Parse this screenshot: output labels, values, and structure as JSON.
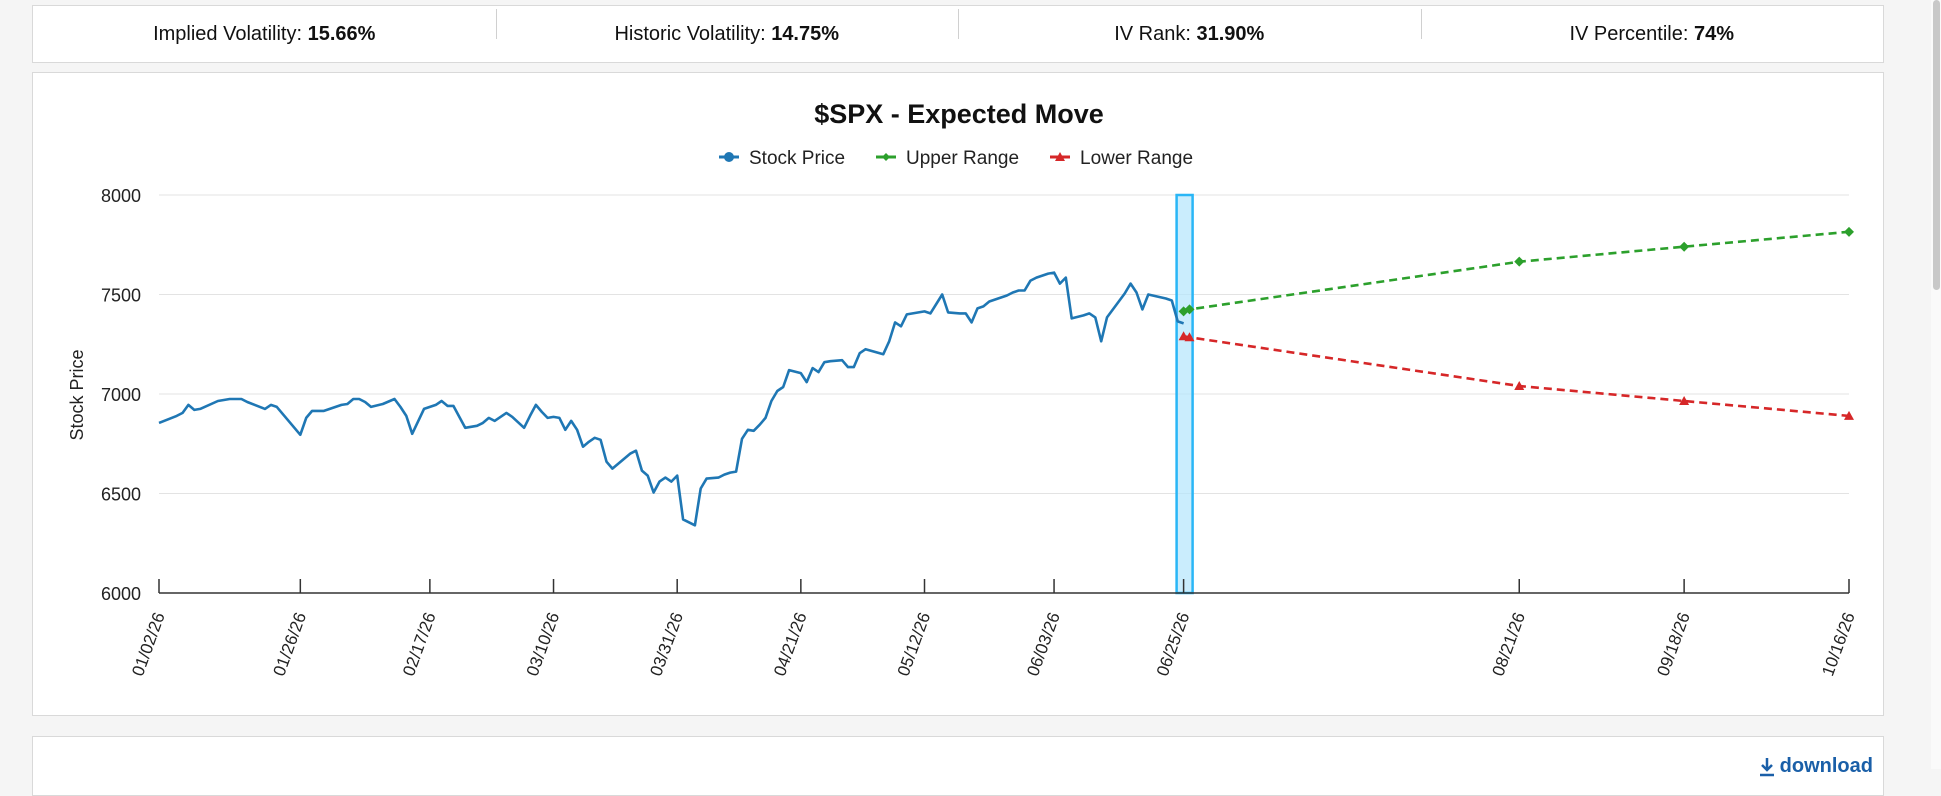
{
  "stats": [
    {
      "label": "Implied Volatility:",
      "value": "15.66%"
    },
    {
      "label": "Historic Volatility:",
      "value": "14.75%"
    },
    {
      "label": "IV Rank:",
      "value": "31.90%"
    },
    {
      "label": "IV Percentile:",
      "value": "74%"
    }
  ],
  "download": {
    "label": "download",
    "icon": "download-icon"
  },
  "chart_data": {
    "type": "line",
    "title": "$SPX - Expected Move",
    "ylabel": "Stock Price",
    "xlabel": "",
    "ylim": [
      6000,
      8000
    ],
    "yticks": [
      6000,
      6500,
      7000,
      7500,
      8000
    ],
    "xticks": [
      "01/02/26",
      "01/26/26",
      "02/17/26",
      "03/10/26",
      "03/31/26",
      "04/21/26",
      "05/12/26",
      "06/03/26",
      "06/25/26",
      "08/21/26",
      "09/18/26",
      "10/16/26"
    ],
    "legend_position": "top-center",
    "grid": true,
    "colors": {
      "stock": "#1f77b4",
      "upper": "#2ca02c",
      "lower": "#d62728",
      "highlight": "#29b6f6"
    },
    "highlight_date": "06/25/26",
    "series": [
      {
        "name": "Stock Price",
        "points": [
          [
            "01/02/26",
            6855
          ],
          [
            "01/05/26",
            6890
          ],
          [
            "01/06/26",
            6905
          ],
          [
            "01/07/26",
            6945
          ],
          [
            "01/08/26",
            6920
          ],
          [
            "01/09/26",
            6925
          ],
          [
            "01/12/26",
            6965
          ],
          [
            "01/14/26",
            6975
          ],
          [
            "01/16/26",
            6975
          ],
          [
            "01/17/26",
            6960
          ],
          [
            "01/20/26",
            6925
          ],
          [
            "01/21/26",
            6945
          ],
          [
            "01/22/26",
            6935
          ],
          [
            "01/26/26",
            6795
          ],
          [
            "01/27/26",
            6880
          ],
          [
            "01/28/26",
            6915
          ],
          [
            "01/30/26",
            6915
          ],
          [
            "02/02/26",
            6945
          ],
          [
            "02/03/26",
            6950
          ],
          [
            "02/04/26",
            6975
          ],
          [
            "02/05/26",
            6975
          ],
          [
            "02/06/26",
            6960
          ],
          [
            "02/07/26",
            6935
          ],
          [
            "02/09/26",
            6950
          ],
          [
            "02/11/26",
            6975
          ],
          [
            "02/12/26",
            6935
          ],
          [
            "02/13/26",
            6890
          ],
          [
            "02/14/26",
            6800
          ],
          [
            "02/16/26",
            6925
          ],
          [
            "02/18/26",
            6945
          ],
          [
            "02/19/26",
            6965
          ],
          [
            "02/20/26",
            6940
          ],
          [
            "02/21/26",
            6940
          ],
          [
            "02/23/26",
            6830
          ],
          [
            "02/24/26",
            6835
          ],
          [
            "02/25/26",
            6840
          ],
          [
            "02/26/26",
            6855
          ],
          [
            "02/27/26",
            6880
          ],
          [
            "02/28/26",
            6865
          ],
          [
            "03/02/26",
            6905
          ],
          [
            "03/03/26",
            6885
          ],
          [
            "03/05/26",
            6830
          ],
          [
            "03/06/26",
            6890
          ],
          [
            "03/07/26",
            6945
          ],
          [
            "03/08/26",
            6910
          ],
          [
            "03/09/26",
            6880
          ],
          [
            "03/10/26",
            6885
          ],
          [
            "03/11/26",
            6880
          ],
          [
            "03/12/26",
            6820
          ],
          [
            "03/13/26",
            6865
          ],
          [
            "03/14/26",
            6820
          ],
          [
            "03/15/26",
            6735
          ],
          [
            "03/16/26",
            6760
          ],
          [
            "03/17/26",
            6780
          ],
          [
            "03/18/26",
            6770
          ],
          [
            "03/19/26",
            6660
          ],
          [
            "03/20/26",
            6625
          ],
          [
            "03/23/26",
            6700
          ],
          [
            "03/24/26",
            6715
          ],
          [
            "03/25/26",
            6615
          ],
          [
            "03/26/26",
            6590
          ],
          [
            "03/27/26",
            6505
          ],
          [
            "03/28/26",
            6560
          ],
          [
            "03/29/26",
            6580
          ],
          [
            "03/30/26",
            6560
          ],
          [
            "03/31/26",
            6590
          ],
          [
            "04/01/26",
            6370
          ],
          [
            "04/03/26",
            6340
          ],
          [
            "04/04/26",
            6525
          ],
          [
            "04/05/26",
            6575
          ],
          [
            "04/07/26",
            6580
          ],
          [
            "04/08/26",
            6595
          ],
          [
            "04/09/26",
            6605
          ],
          [
            "04/10/26",
            6610
          ],
          [
            "04/11/26",
            6775
          ],
          [
            "04/12/26",
            6820
          ],
          [
            "04/13/26",
            6815
          ],
          [
            "04/14/26",
            6845
          ],
          [
            "04/15/26",
            6880
          ],
          [
            "04/16/26",
            6965
          ],
          [
            "04/17/26",
            7015
          ],
          [
            "04/18/26",
            7035
          ],
          [
            "04/19/26",
            7120
          ],
          [
            "04/21/26",
            7105
          ],
          [
            "04/22/26",
            7060
          ],
          [
            "04/23/26",
            7130
          ],
          [
            "04/24/26",
            7110
          ],
          [
            "04/25/26",
            7160
          ],
          [
            "04/26/26",
            7165
          ],
          [
            "04/28/26",
            7170
          ],
          [
            "04/29/26",
            7135
          ],
          [
            "04/30/26",
            7135
          ],
          [
            "05/01/26",
            7205
          ],
          [
            "05/02/26",
            7225
          ],
          [
            "05/05/26",
            7200
          ],
          [
            "05/06/26",
            7265
          ],
          [
            "05/07/26",
            7360
          ],
          [
            "05/08/26",
            7340
          ],
          [
            "05/09/26",
            7400
          ],
          [
            "05/11/26",
            7410
          ],
          [
            "05/12/26",
            7415
          ],
          [
            "05/13/26",
            7405
          ],
          [
            "05/15/26",
            7500
          ],
          [
            "05/16/26",
            7410
          ],
          [
            "05/18/26",
            7405
          ],
          [
            "05/19/26",
            7405
          ],
          [
            "05/20/26",
            7360
          ],
          [
            "05/21/26",
            7430
          ],
          [
            "05/22/26",
            7440
          ],
          [
            "05/23/26",
            7465
          ],
          [
            "05/26/26",
            7495
          ],
          [
            "05/27/26",
            7510
          ],
          [
            "05/28/26",
            7520
          ],
          [
            "05/29/26",
            7520
          ],
          [
            "05/30/26",
            7570
          ],
          [
            "05/31/26",
            7585
          ],
          [
            "06/02/26",
            7605
          ],
          [
            "06/03/26",
            7610
          ],
          [
            "06/04/26",
            7555
          ],
          [
            "06/05/26",
            7585
          ],
          [
            "06/06/26",
            7380
          ],
          [
            "06/08/26",
            7395
          ],
          [
            "06/09/26",
            7405
          ],
          [
            "06/10/26",
            7385
          ],
          [
            "06/11/26",
            7265
          ],
          [
            "06/12/26",
            7385
          ],
          [
            "06/15/26",
            7505
          ],
          [
            "06/16/26",
            7555
          ],
          [
            "06/17/26",
            7510
          ],
          [
            "06/18/26",
            7425
          ],
          [
            "06/19/26",
            7500
          ],
          [
            "06/22/26",
            7480
          ],
          [
            "06/23/26",
            7470
          ],
          [
            "06/24/26",
            7365
          ],
          [
            "06/25/26",
            7355
          ]
        ]
      },
      {
        "name": "Upper Range",
        "points": [
          [
            "06/25/26",
            7415
          ],
          [
            "06/26/26",
            7425
          ],
          [
            "08/21/26",
            7665
          ],
          [
            "09/18/26",
            7740
          ],
          [
            "10/16/26",
            7815
          ]
        ]
      },
      {
        "name": "Lower Range",
        "points": [
          [
            "06/25/26",
            7290
          ],
          [
            "06/26/26",
            7285
          ],
          [
            "08/21/26",
            7040
          ],
          [
            "09/18/26",
            6965
          ],
          [
            "10/16/26",
            6890
          ]
        ]
      }
    ]
  }
}
